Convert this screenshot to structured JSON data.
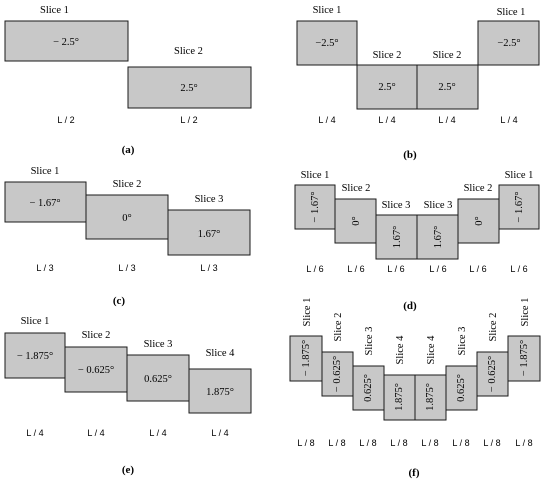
{
  "colors": {
    "block_fill": "#c8c8c8",
    "block_stroke": "#1a1a1a"
  },
  "panels": {
    "a": {
      "caption": "(a)",
      "slices": [
        {
          "name": "Slice 1",
          "angle": "− 2.5°",
          "length": "L / 2"
        },
        {
          "name": "Slice 2",
          "angle": "2.5°",
          "length": "L / 2"
        }
      ]
    },
    "b": {
      "caption": "(b)",
      "slices": [
        {
          "name": "Slice 1",
          "angle": "−2.5°",
          "length": "L / 4"
        },
        {
          "name": "Slice 2",
          "angle": "2.5°",
          "length": "L / 4"
        },
        {
          "name": "Slice 2",
          "angle": "2.5°",
          "length": "L / 4"
        },
        {
          "name": "Slice 1",
          "angle": "−2.5°",
          "length": "L / 4"
        }
      ]
    },
    "c": {
      "caption": "(c)",
      "slices": [
        {
          "name": "Slice 1",
          "angle": "− 1.67°",
          "length": "L / 3"
        },
        {
          "name": "Slice 2",
          "angle": "0°",
          "length": "L / 3"
        },
        {
          "name": "Slice 3",
          "angle": "1.67°",
          "length": "L / 3"
        }
      ]
    },
    "d": {
      "caption": "(d)",
      "slices": [
        {
          "name": "Slice 1",
          "angle": "− 1.67°",
          "length": "L / 6"
        },
        {
          "name": "Slice 2",
          "angle": "0°",
          "length": "L / 6"
        },
        {
          "name": "Slice 3",
          "angle": "1.67°",
          "length": "L / 6"
        },
        {
          "name": "Slice 3",
          "angle": "1.67°",
          "length": "L / 6"
        },
        {
          "name": "Slice 2",
          "angle": "0°",
          "length": "L / 6"
        },
        {
          "name": "Slice 1",
          "angle": "− 1.67°",
          "length": "L / 6"
        }
      ]
    },
    "e": {
      "caption": "(e)",
      "slices": [
        {
          "name": "Slice 1",
          "angle": "− 1.875°",
          "length": "L / 4"
        },
        {
          "name": "Slice 2",
          "angle": "− 0.625°",
          "length": "L / 4"
        },
        {
          "name": "Slice 3",
          "angle": "0.625°",
          "length": "L / 4"
        },
        {
          "name": "Slice 4",
          "angle": "1.875°",
          "length": "L / 4"
        }
      ]
    },
    "f": {
      "caption": "(f)",
      "slices": [
        {
          "name": "Slice 1",
          "angle": "− 1.875°",
          "length": "L / 8"
        },
        {
          "name": "Slice 2",
          "angle": "− 0.625°",
          "length": "L / 8"
        },
        {
          "name": "Slice 3",
          "angle": "0.625°",
          "length": "L / 8"
        },
        {
          "name": "Slice 4",
          "angle": "1.875°",
          "length": "L / 8"
        },
        {
          "name": "Slice 4",
          "angle": "1.875°",
          "length": "L / 8"
        },
        {
          "name": "Slice 3",
          "angle": "0.625°",
          "length": "L / 8"
        },
        {
          "name": "Slice 2",
          "angle": "− 0.625°",
          "length": "L / 8"
        },
        {
          "name": "Slice 1",
          "angle": "− 1.875°",
          "length": "L / 8"
        }
      ]
    }
  }
}
